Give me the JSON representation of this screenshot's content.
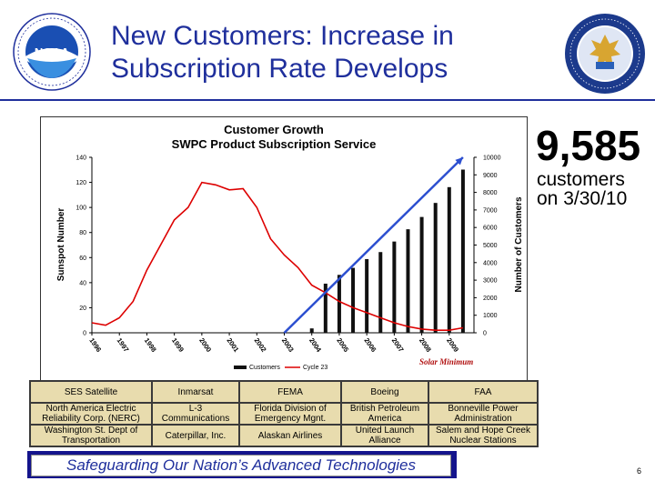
{
  "slide": {
    "title_line1": "New Customers: Increase in",
    "title_line2": "Subscription Rate Develops",
    "footer": "Safeguarding Our Nation’s Advanced Technologies",
    "page_number": "6",
    "brand_color": "#1f2f9c"
  },
  "logos": {
    "left": {
      "icon": "noaa-logo-icon",
      "text": "NOAA"
    },
    "right": {
      "icon": "department-of-commerce-seal-icon"
    }
  },
  "callout": {
    "count": "9,585",
    "caption_line1": "customers",
    "caption_line2": "on 3/30/10"
  },
  "chart_data": {
    "type": "bar",
    "title": "Customer Growth",
    "subtitle": "SWPC Product Subscription Service",
    "ylabel": "Sunspot Number",
    "y2label": "Number of Customers",
    "ylim": [
      0,
      140
    ],
    "y2lim": [
      0,
      10000
    ],
    "yticks": [
      "0",
      "20",
      "40",
      "60",
      "80",
      "100",
      "120",
      "140"
    ],
    "y2ticks": [
      "0",
      "1000",
      "2000",
      "3000",
      "4000",
      "5000",
      "6000",
      "7000",
      "8000",
      "9000",
      "10000"
    ],
    "categories": [
      "1996",
      "1997",
      "1998",
      "1999",
      "2000",
      "2001",
      "2002",
      "2003",
      "2004",
      "2005",
      "2006",
      "2007",
      "2008",
      "2009"
    ],
    "annotation": "Solar Minimum",
    "grid": false,
    "legend_position": "bottom",
    "series": [
      {
        "name": "Customers",
        "type": "bar",
        "axis": "right",
        "color": "#111111",
        "points": [
          [
            2004.0,
            250
          ],
          [
            2004.5,
            2800
          ],
          [
            2005.0,
            3300
          ],
          [
            2005.5,
            3700
          ],
          [
            2006.0,
            4200
          ],
          [
            2006.5,
            4600
          ],
          [
            2007.0,
            5200
          ],
          [
            2007.5,
            5900
          ],
          [
            2008.0,
            6600
          ],
          [
            2008.5,
            7400
          ],
          [
            2009.0,
            8300
          ],
          [
            2009.5,
            9300
          ]
        ]
      },
      {
        "name": "Cycle 23",
        "type": "line",
        "axis": "left",
        "color": "#dd0000",
        "points": [
          [
            1996.0,
            8
          ],
          [
            1996.5,
            6
          ],
          [
            1997.0,
            12
          ],
          [
            1997.5,
            25
          ],
          [
            1998.0,
            50
          ],
          [
            1998.5,
            70
          ],
          [
            1999.0,
            90
          ],
          [
            1999.5,
            100
          ],
          [
            2000.0,
            120
          ],
          [
            2000.5,
            118
          ],
          [
            2001.0,
            114
          ],
          [
            2001.5,
            115
          ],
          [
            2002.0,
            100
          ],
          [
            2002.5,
            75
          ],
          [
            2003.0,
            62
          ],
          [
            2003.5,
            52
          ],
          [
            2004.0,
            38
          ],
          [
            2004.5,
            32
          ],
          [
            2005.0,
            25
          ],
          [
            2005.5,
            20
          ],
          [
            2006.0,
            16
          ],
          [
            2006.5,
            12
          ],
          [
            2007.0,
            8
          ],
          [
            2007.5,
            5
          ],
          [
            2008.0,
            3
          ],
          [
            2008.5,
            2
          ],
          [
            2009.0,
            2
          ],
          [
            2009.5,
            4
          ]
        ]
      }
    ],
    "trend_arrow": {
      "color": "#2c4fd0",
      "from": [
        2003.0,
        0
      ],
      "to": [
        2009.5,
        10000
      ]
    }
  },
  "companies": [
    [
      "SES Satellite",
      "Inmarsat",
      "FEMA",
      "Boeing",
      "FAA"
    ],
    [
      "North America Electric Reliability Corp. (NERC)",
      "L-3 Communications",
      "Florida Division of Emergency Mgnt.",
      "British Petroleum America",
      "Bonneville Power Administration"
    ],
    [
      "Washington St. Dept of Transportation",
      "Caterpillar, Inc.",
      "Alaskan Airlines",
      "United Launch Alliance",
      "Salem and Hope Creek Nuclear Stations"
    ]
  ]
}
